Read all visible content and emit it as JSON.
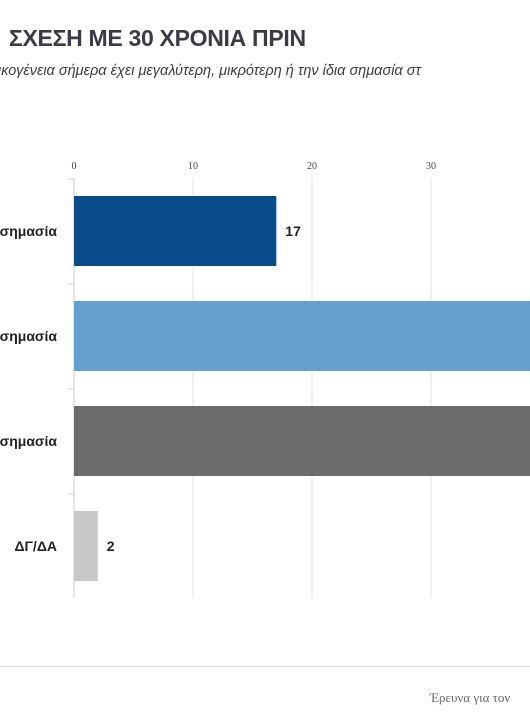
{
  "header": {
    "title": "ΣΧΕΣΗ ΜΕ 30 ΧΡΟΝΙΑ ΠΡΙΝ",
    "subtitle": "ικογένεια σήμερα έχει μεγαλύτερη, μικρότερη ή την ίδια σημασία στ"
  },
  "footer": {
    "source": "Έρευνα για τον"
  },
  "chart_data": {
    "type": "bar",
    "orientation": "horizontal",
    "categories": [
      "σημασία",
      "σημασία",
      "σημασία",
      "ΔΓ/ΔΑ"
    ],
    "values": [
      17,
      null,
      null,
      2
    ],
    "data_labels": [
      "17",
      "",
      "",
      "2"
    ],
    "colors": [
      "#0a4c8a",
      "#64a1cf",
      "#6b6b6b",
      "#c8c8c8"
    ],
    "x_ticks": [
      0,
      10,
      20,
      30
    ],
    "xlim": [
      0,
      39
    ],
    "grid": true,
    "legend": "none"
  }
}
